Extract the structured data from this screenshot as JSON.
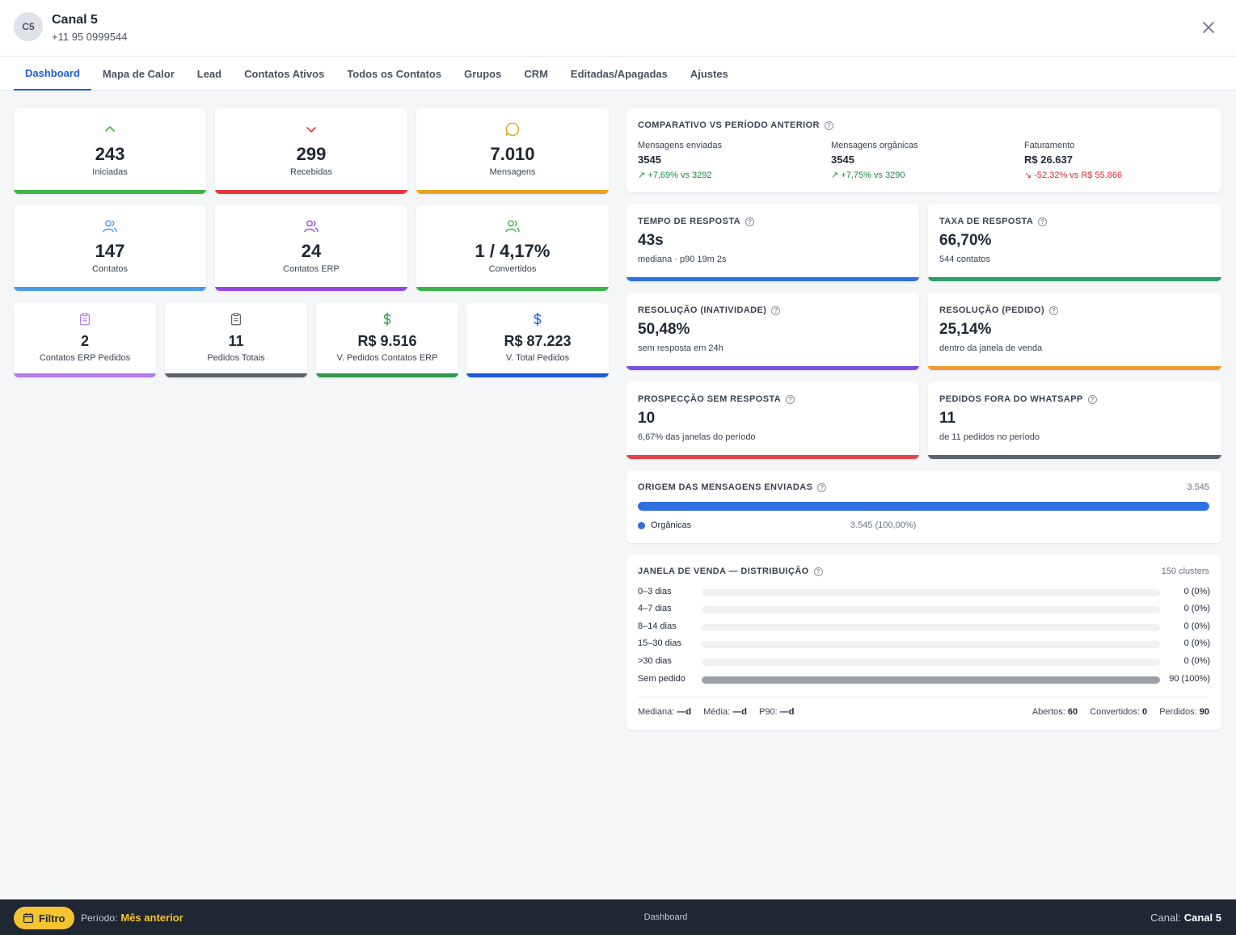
{
  "header": {
    "avatar_initials": "C5",
    "channel_name": "Canal 5",
    "phone": "+11 95 0999544"
  },
  "tabs": [
    {
      "label": "Dashboard",
      "active": true
    },
    {
      "label": "Mapa de Calor"
    },
    {
      "label": "Lead"
    },
    {
      "label": "Contatos Ativos"
    },
    {
      "label": "Todos os Contatos"
    },
    {
      "label": "Grupos"
    },
    {
      "label": "CRM"
    },
    {
      "label": "Editadas/Apagadas"
    },
    {
      "label": "Ajustes"
    }
  ],
  "stats": {
    "iniciadas": {
      "value": "243",
      "label": "Iniciadas",
      "icon": "chevron-up-icon",
      "color": "#3bb54a"
    },
    "recebidas": {
      "value": "299",
      "label": "Recebidas",
      "icon": "chevron-down-icon",
      "color": "#e5383b"
    },
    "mensagens": {
      "value": "7.010",
      "label": "Mensagens",
      "icon": "message-bubble-icon",
      "color": "#e8a320"
    },
    "contatos": {
      "value": "147",
      "label": "Contatos",
      "icon": "users-icon",
      "color": "#4a9be8"
    },
    "contatos_erp": {
      "value": "24",
      "label": "Contatos ERP",
      "icon": "users-icon",
      "color": "#9747e0"
    },
    "convertidos": {
      "value": "1 / 4,17%",
      "label": "Convertidos",
      "icon": "users-icon",
      "color": "#3bb54a"
    },
    "contatos_erp_pedidos": {
      "value": "2",
      "label": "Contatos ERP Pedidos",
      "icon": "clipboard-icon",
      "color": "#b27be8"
    },
    "pedidos_totais": {
      "value": "11",
      "label": "Pedidos Totais",
      "icon": "clipboard-icon",
      "color": "#5c636d"
    },
    "v_pedidos_erp": {
      "value": "R$ 9.516",
      "label": "V. Pedidos Contatos ERP",
      "icon": "dollar-icon",
      "color": "#2f9a4a"
    },
    "v_total_pedidos": {
      "value": "R$ 87.223",
      "label": "V. Total Pedidos",
      "icon": "dollar-icon",
      "color": "#1d5ad6"
    }
  },
  "comparativo": {
    "title": "COMPARATIVO VS PERÍODO ANTERIOR",
    "cols": [
      {
        "label": "Mensagens enviadas",
        "value": "3545",
        "delta": "↗ +7,69% vs 3292",
        "trend": "up"
      },
      {
        "label": "Mensagens orgânicas",
        "value": "3545",
        "delta": "↗ +7,75% vs 3290",
        "trend": "up"
      },
      {
        "label": "Faturamento",
        "value": "R$ 26.637",
        "delta": "↘ -52,32% vs R$ 55.866",
        "trend": "down"
      }
    ]
  },
  "metrics": {
    "tempo_resposta": {
      "title": "TEMPO DE RESPOSTA",
      "value": "43s",
      "sub": "mediana · p90 19m 2s",
      "color": "#2f6fe0"
    },
    "taxa_resposta": {
      "title": "TAXA DE RESPOSTA",
      "value": "66,70%",
      "sub": "544 contatos",
      "color": "#2e9d68"
    },
    "resolucao_inatividade": {
      "title": "RESOLUÇÃO (INATIVIDADE)",
      "value": "50,48%",
      "sub": "sem resposta em 24h",
      "color": "#7b4fe0"
    },
    "resolucao_pedido": {
      "title": "RESOLUÇÃO (PEDIDO)",
      "value": "25,14%",
      "sub": "dentro da janela de venda",
      "color": "#ee9a32"
    },
    "prospeccao": {
      "title": "PROSPECÇÃO SEM RESPOSTA",
      "value": "10",
      "sub": "6,67% das janelas do período",
      "color": "#e5454b"
    },
    "pedidos_fora": {
      "title": "PEDIDOS FORA DO WHATSAPP",
      "value": "11",
      "sub": "de 11 pedidos no período",
      "color": "#5b6370"
    }
  },
  "origem": {
    "title": "ORIGEM DAS MENSAGENS ENVIADAS",
    "total": "3.545",
    "legend_label": "Orgânicas",
    "legend_value": "3.545 (100,00%)",
    "fraction": 1.0,
    "color": "#2f6fe0"
  },
  "janela": {
    "title": "JANELA DE VENDA — DISTRIBUIÇÃO",
    "clusters": "150 clusters",
    "rows": [
      {
        "label": "0–3 dias",
        "value": "0 (0%)",
        "fraction": 0
      },
      {
        "label": "4–7 dias",
        "value": "0 (0%)",
        "fraction": 0
      },
      {
        "label": "8–14 dias",
        "value": "0 (0%)",
        "fraction": 0
      },
      {
        "label": "15–30 dias",
        "value": "0 (0%)",
        "fraction": 0
      },
      {
        "label": ">30 dias",
        "value": "0 (0%)",
        "fraction": 0
      },
      {
        "label": "Sem pedido",
        "value": "90 (100%)",
        "fraction": 1.0
      }
    ],
    "footer": {
      "mediana_label": "Mediana:",
      "mediana_value": "—d",
      "media_label": "Média:",
      "media_value": "—d",
      "p90_label": "P90:",
      "p90_value": "—d",
      "abertos_label": "Abertos:",
      "abertos_value": "60",
      "convertidos_label": "Convertidos:",
      "convertidos_value": "0",
      "perdidos_label": "Perdidos:",
      "perdidos_value": "90"
    }
  },
  "footer": {
    "filter_label": "Filtro",
    "period_label": "Período:",
    "period_value": "Mês anterior",
    "center": "Dashboard",
    "canal_label": "Canal:",
    "canal_value": "Canal 5"
  }
}
